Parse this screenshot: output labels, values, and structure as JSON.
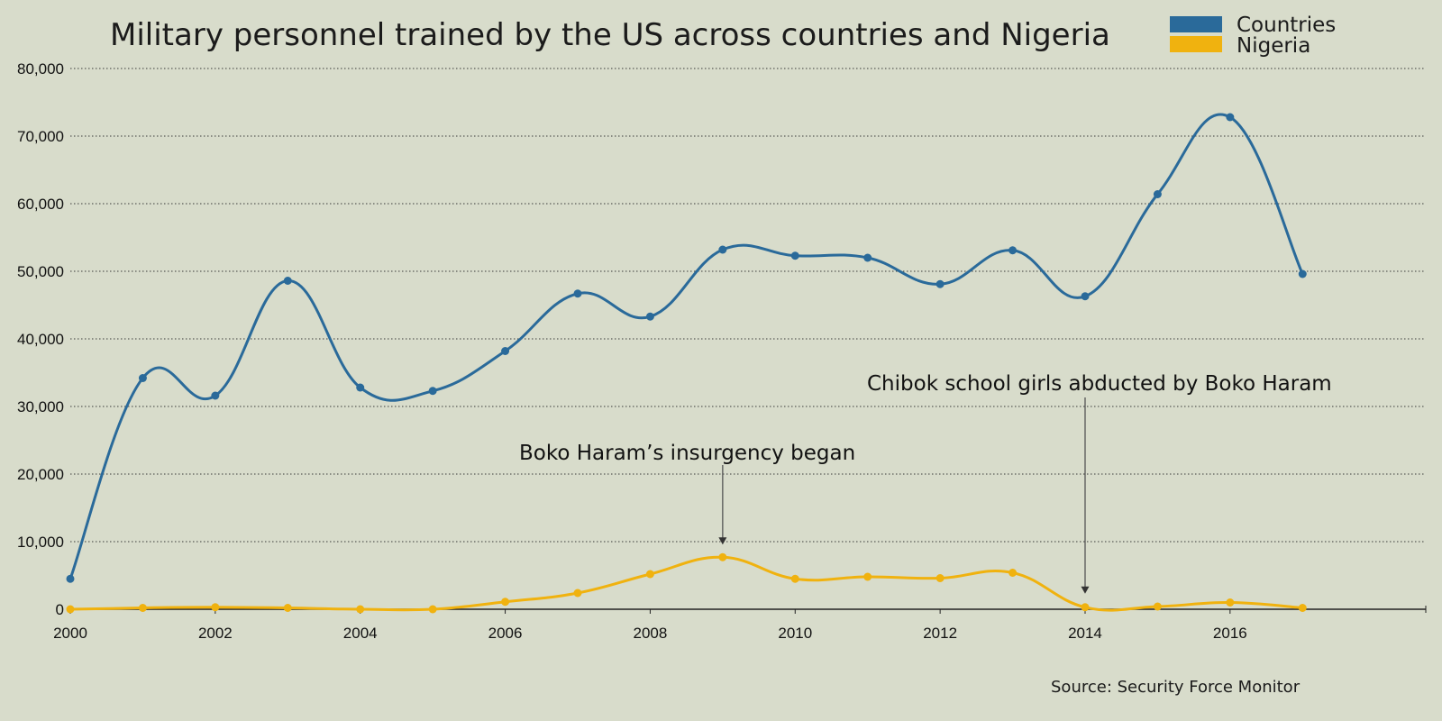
{
  "chart_data": {
    "type": "line",
    "title": "Military personnel trained by the US across countries and Nigeria",
    "x": [
      2000,
      2001,
      2002,
      2003,
      2004,
      2005,
      2006,
      2007,
      2008,
      2009,
      2010,
      2011,
      2012,
      2013,
      2014,
      2015,
      2016,
      2017
    ],
    "xticks": [
      "2000",
      "2002",
      "2004",
      "2006",
      "2008",
      "2010",
      "2012",
      "2014",
      "2016"
    ],
    "xlim": [
      2000,
      2018.7
    ],
    "yticks": [
      "0",
      "10,000",
      "20,000",
      "30,000",
      "40,000",
      "50,000",
      "60,000",
      "70,000",
      "80,000"
    ],
    "ylim": [
      0,
      80000
    ],
    "grid": true,
    "legend_position": "top-right",
    "series": [
      {
        "name": "Countries",
        "color": "#2a6a9a",
        "values": [
          4500,
          34200,
          31600,
          48600,
          32800,
          32300,
          38200,
          46700,
          43300,
          53200,
          52300,
          52000,
          48100,
          53100,
          46300,
          61400,
          72800,
          49600
        ]
      },
      {
        "name": "Nigeria",
        "color": "#f0b20f",
        "values": [
          0,
          200,
          300,
          200,
          0,
          0,
          1100,
          2400,
          5200,
          7700,
          4500,
          4800,
          4600,
          5400,
          300,
          400,
          1000,
          200
        ]
      }
    ],
    "annotations": [
      {
        "text": "Boko Haram’s insurgency began",
        "x": 2009
      },
      {
        "text": "Chibok school girls abducted by Boko Haram",
        "x": 2014
      }
    ],
    "source": "Source: Security Force Monitor"
  }
}
